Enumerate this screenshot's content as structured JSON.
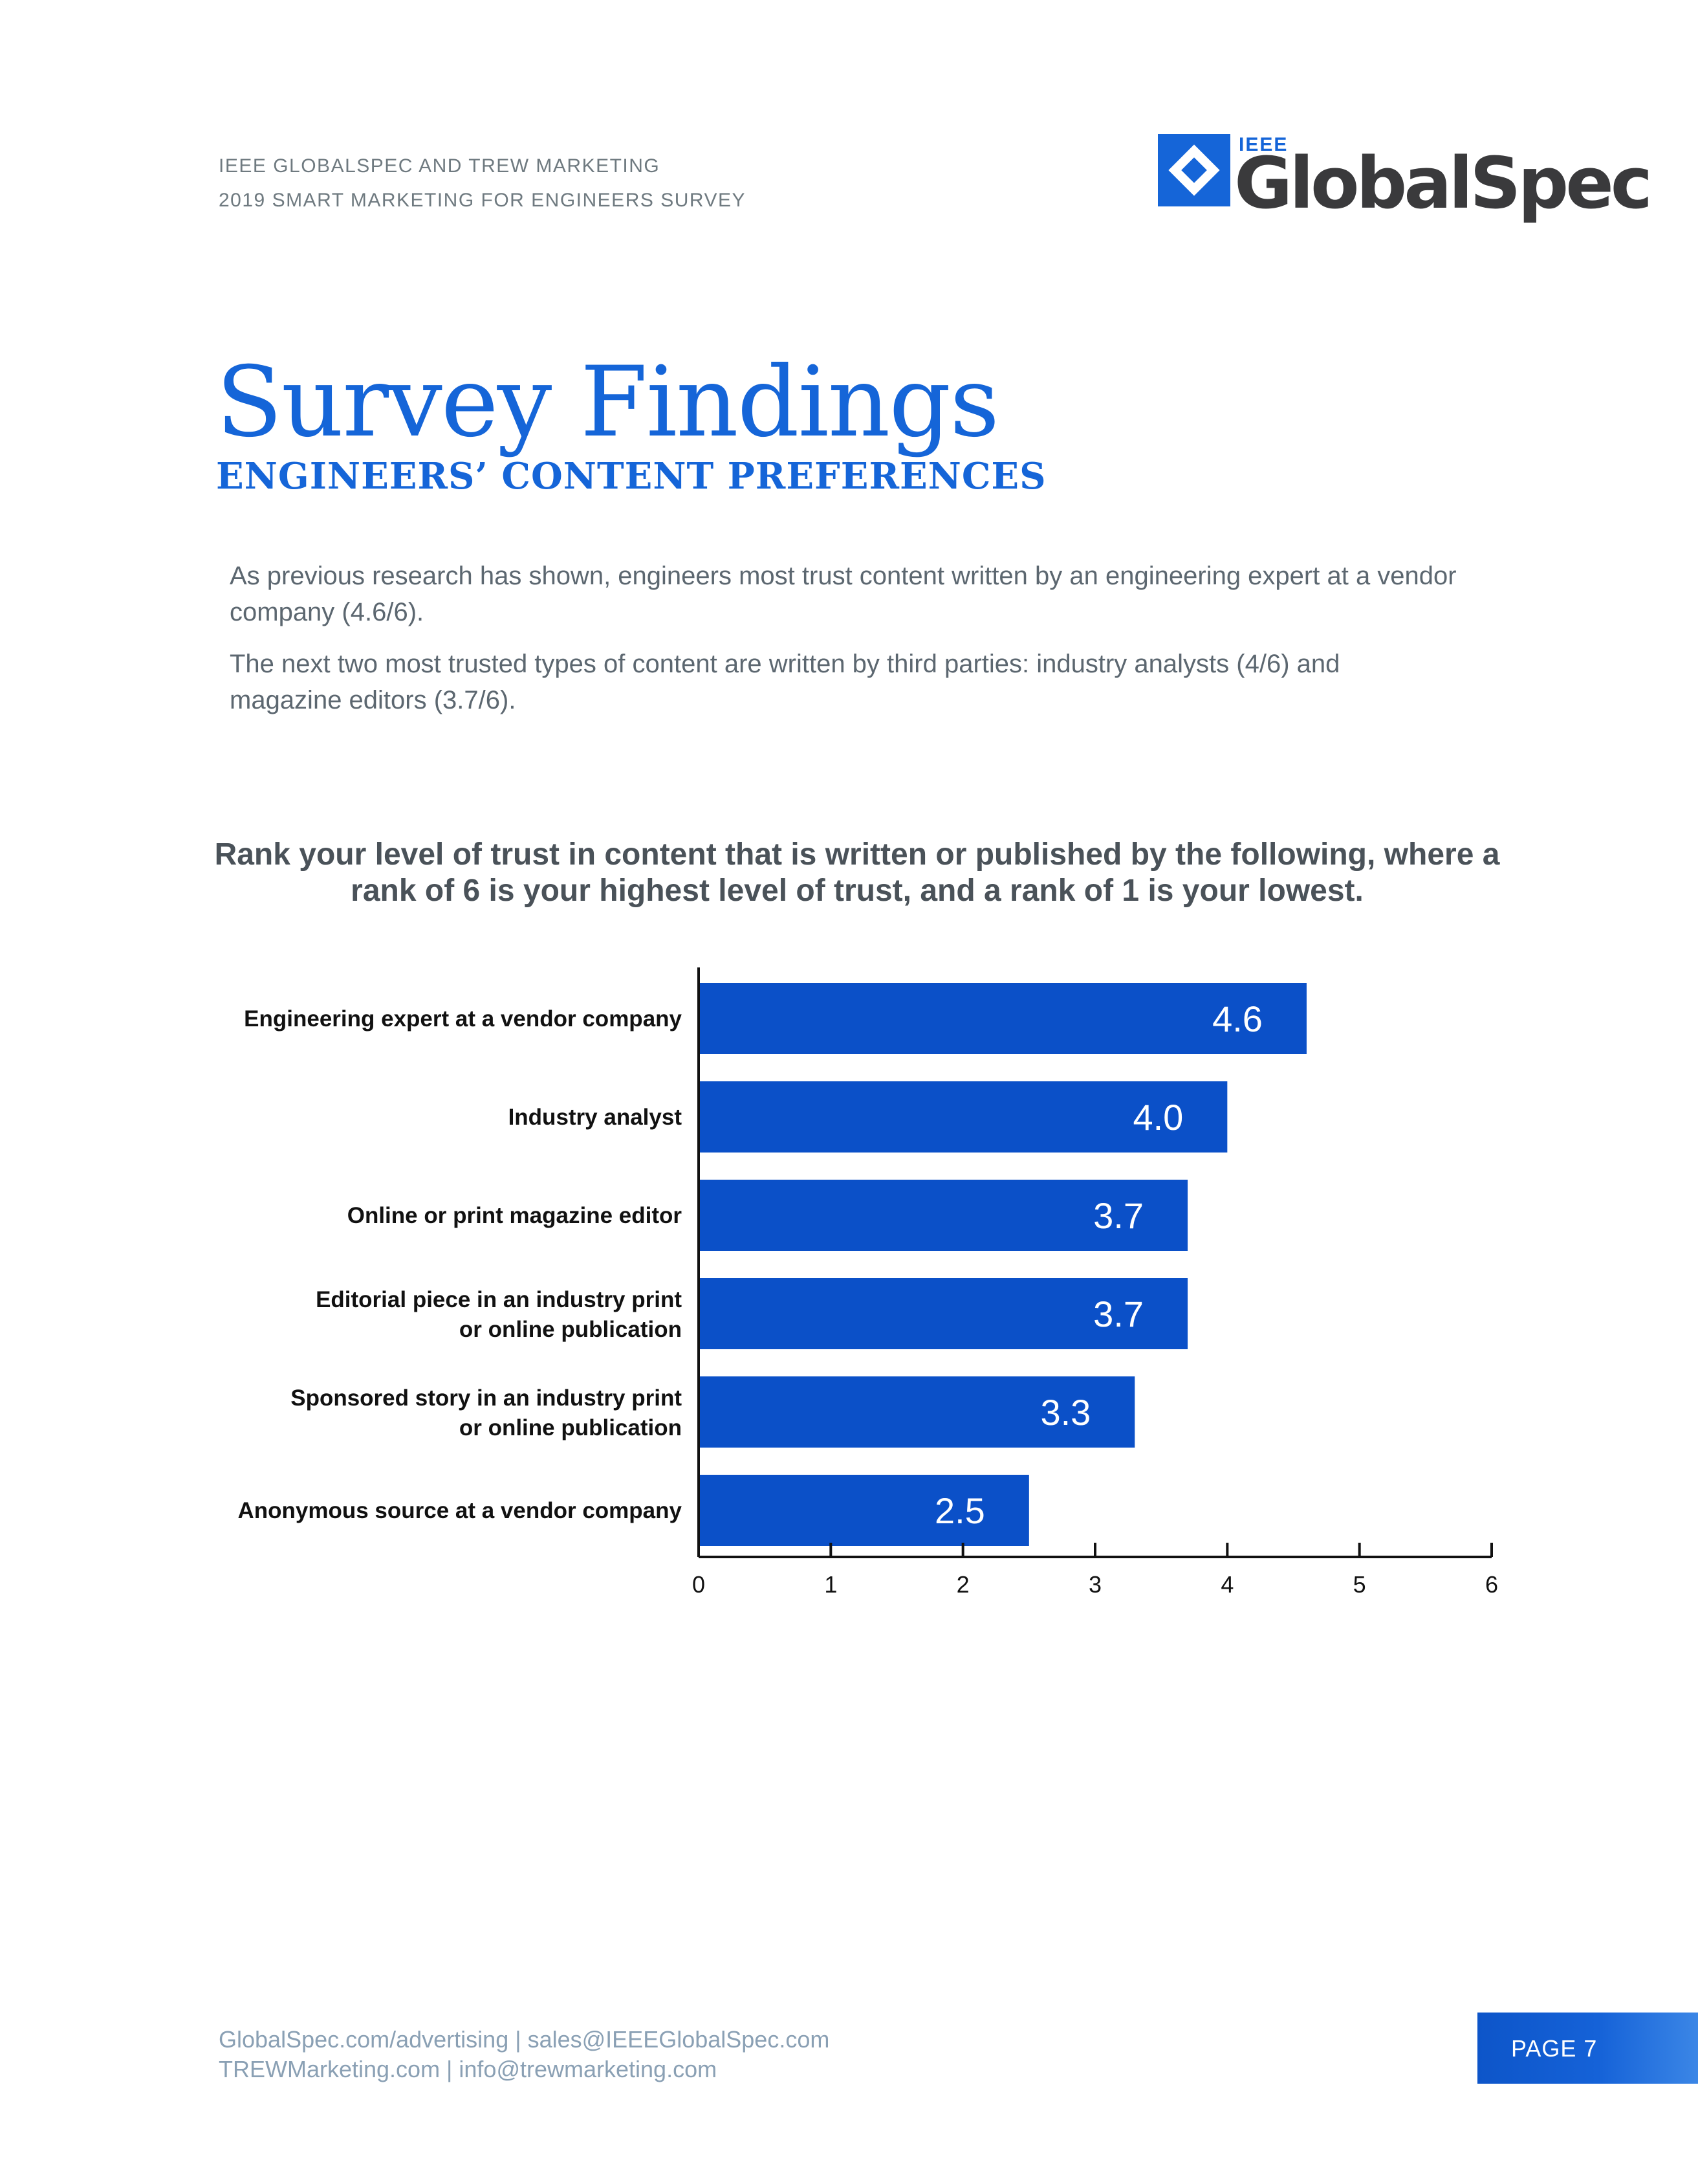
{
  "header": {
    "line1": "IEEE GLOBALSPEC AND TREW MARKETING",
    "line2": "2019 SMART MARKETING FOR ENGINEERS SURVEY"
  },
  "logo": {
    "small_text": "IEEE",
    "brand_text": "GlobalSpec",
    "icon": "globalspec-diamond-logo-icon"
  },
  "page": {
    "title": "Survey Findings",
    "subtitle": "ENGINEERS’ CONTENT PREFERENCES",
    "paragraphs": [
      "As previous research has shown, engineers most trust content written by an engineering expert at a vendor company (4.6/6).",
      "The next two most trusted types of content are written by third parties: industry analysts (4/6) and magazine editors (3.7/6)."
    ]
  },
  "chart_data": {
    "type": "bar",
    "orientation": "horizontal",
    "title": "Rank your level of trust in content that is written or published by the following, where a rank of 6 is your highest level of trust, and a rank of 1 is your lowest.",
    "categories": [
      "Engineering expert at a vendor company",
      "Industry analyst",
      "Online or print magazine editor",
      "Editorial piece in an industry print or online publication",
      "Sponsored story in an industry print or online publication",
      "Anonymous source at a vendor company"
    ],
    "values": [
      4.6,
      4.0,
      3.7,
      3.7,
      3.3,
      2.5
    ],
    "value_labels": [
      "4.6",
      "4.0",
      "3.7",
      "3.7",
      "3.3",
      "2.5"
    ],
    "xlim": [
      0,
      6
    ],
    "xticks": [
      "0",
      "1",
      "2",
      "3",
      "4",
      "5",
      "6"
    ],
    "bar_color": "#0b50c8",
    "grid": false,
    "legend": "none"
  },
  "footer": {
    "line1": "GlobalSpec.com/advertising  |  sales@IEEEGlobalSpec.com",
    "line2": "TREWMarketing.com  |  info@trewmarketing.com",
    "page_label": "PAGE 7"
  }
}
